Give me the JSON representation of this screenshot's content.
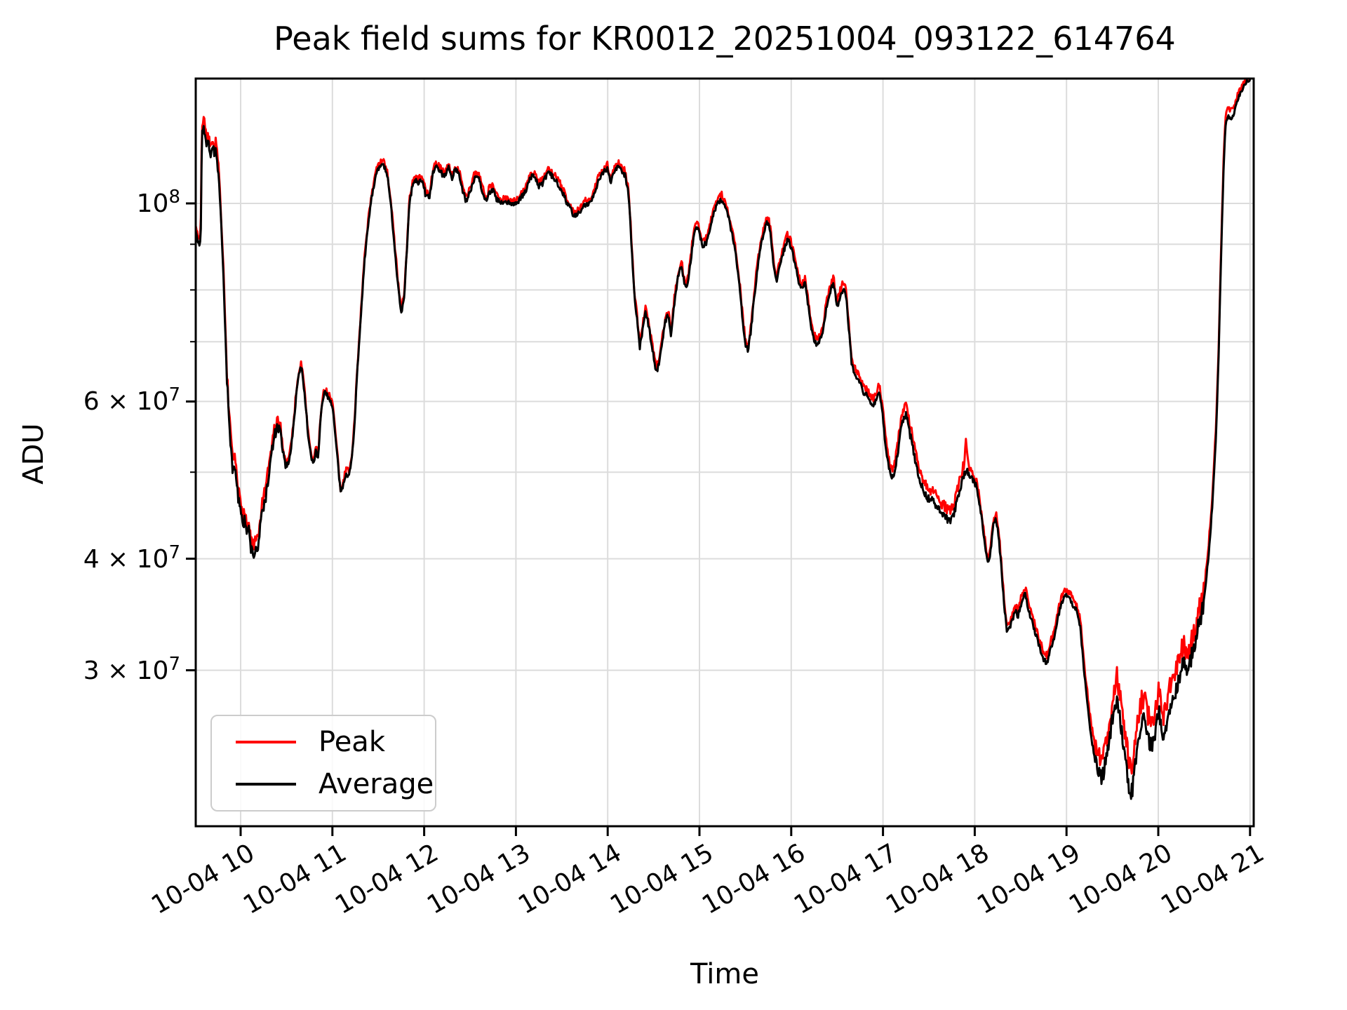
{
  "title": "Peak field sums for KR0012_20251004_093122_614764",
  "chart_data": {
    "type": "line",
    "title": "Peak field sums for KR0012_20251004_093122_614764",
    "xlabel": "Time",
    "ylabel": "ADU",
    "y_scale": "log",
    "grid": true,
    "legend_position": "lower left",
    "background_color": "#ffffff",
    "grid_color": "#dcdcdc",
    "spine_color": "#000000",
    "x_range_hours": [
      9.497,
      21.034
    ],
    "y_range_adu": [
      20000000,
      138000000
    ],
    "x_ticks": [
      {
        "label": "10-04 10",
        "hour": 10
      },
      {
        "label": "10-04 11",
        "hour": 11
      },
      {
        "label": "10-04 12",
        "hour": 12
      },
      {
        "label": "10-04 13",
        "hour": 13
      },
      {
        "label": "10-04 14",
        "hour": 14
      },
      {
        "label": "10-04 15",
        "hour": 15
      },
      {
        "label": "10-04 16",
        "hour": 16
      },
      {
        "label": "10-04 17",
        "hour": 17
      },
      {
        "label": "10-04 18",
        "hour": 18
      },
      {
        "label": "10-04 19",
        "hour": 19
      },
      {
        "label": "10-04 20",
        "hour": 20
      },
      {
        "label": "10-04 21",
        "hour": 21
      }
    ],
    "y_ticks": [
      {
        "value_e7": 10,
        "coef": "10",
        "exp": "8"
      },
      {
        "value_e7": 6,
        "coef": "6 × 10",
        "exp": "7"
      },
      {
        "value_e7": 4,
        "coef": "4 × 10",
        "exp": "7"
      },
      {
        "value_e7": 3,
        "coef": "3 × 10",
        "exp": "7"
      }
    ],
    "y_minor_ticks_e7": [
      9,
      8,
      7,
      5
    ],
    "series": [
      {
        "name": "Peak",
        "color": "#ff0000"
      },
      {
        "name": "Average",
        "color": "#000000"
      }
    ],
    "average_points_e7": [
      [
        9.515,
        9.3
      ],
      [
        9.53,
        9.1
      ],
      [
        9.55,
        9.0
      ],
      [
        9.565,
        9.15
      ],
      [
        9.578,
        12.15
      ],
      [
        9.6,
        12.2
      ],
      [
        9.615,
        11.85
      ],
      [
        9.63,
        11.5
      ],
      [
        9.645,
        11.9
      ],
      [
        9.66,
        11.55
      ],
      [
        9.675,
        11.25
      ],
      [
        9.695,
        11.7
      ],
      [
        9.71,
        11.35
      ],
      [
        9.725,
        11.55
      ],
      [
        9.74,
        11.2
      ],
      [
        9.755,
        10.9
      ],
      [
        9.77,
        10.3
      ],
      [
        9.79,
        9.4
      ],
      [
        9.81,
        8.4
      ],
      [
        9.83,
        7.3
      ],
      [
        9.85,
        6.4
      ],
      [
        9.87,
        5.8
      ],
      [
        9.885,
        5.45
      ],
      [
        9.9,
        5.25
      ],
      [
        9.915,
        5.0
      ],
      [
        9.93,
        5.15
      ],
      [
        9.945,
        4.95
      ],
      [
        9.96,
        4.8
      ],
      [
        9.975,
        4.65
      ],
      [
        9.99,
        4.62
      ],
      [
        10.01,
        4.5
      ],
      [
        10.03,
        4.38
      ],
      [
        10.05,
        4.42
      ],
      [
        10.07,
        4.25
      ],
      [
        10.09,
        4.32
      ],
      [
        10.11,
        4.12
      ],
      [
        10.13,
        4.06
      ],
      [
        10.15,
        4.03
      ],
      [
        10.17,
        4.14
      ],
      [
        10.19,
        4.08
      ],
      [
        10.21,
        4.3
      ],
      [
        10.23,
        4.5
      ],
      [
        10.25,
        4.58
      ],
      [
        10.28,
        4.72
      ],
      [
        10.31,
        4.98
      ],
      [
        10.34,
        5.28
      ],
      [
        10.37,
        5.5
      ],
      [
        10.4,
        5.6
      ],
      [
        10.43,
        5.55
      ],
      [
        10.46,
        5.28
      ],
      [
        10.49,
        5.08
      ],
      [
        10.52,
        5.12
      ],
      [
        10.55,
        5.32
      ],
      [
        10.58,
        5.68
      ],
      [
        10.61,
        6.18
      ],
      [
        10.64,
        6.48
      ],
      [
        10.66,
        6.55
      ],
      [
        10.68,
        6.38
      ],
      [
        10.71,
        5.92
      ],
      [
        10.74,
        5.42
      ],
      [
        10.77,
        5.18
      ],
      [
        10.8,
        5.12
      ],
      [
        10.82,
        5.3
      ],
      [
        10.845,
        5.18
      ],
      [
        10.87,
        5.72
      ],
      [
        10.9,
        6.08
      ],
      [
        10.93,
        6.15
      ],
      [
        10.96,
        6.05
      ],
      [
        11.0,
        5.95
      ],
      [
        11.03,
        5.52
      ],
      [
        11.06,
        5.12
      ],
      [
        11.09,
        4.72
      ],
      [
        11.12,
        4.85
      ],
      [
        11.15,
        5.0
      ],
      [
        11.18,
        4.95
      ],
      [
        11.21,
        5.15
      ],
      [
        11.24,
        5.65
      ],
      [
        11.27,
        6.45
      ],
      [
        11.31,
        7.5
      ],
      [
        11.35,
        8.6
      ],
      [
        11.4,
        9.7
      ],
      [
        11.44,
        10.35
      ],
      [
        11.48,
        10.8
      ],
      [
        11.52,
        11.0
      ],
      [
        11.56,
        11.05
      ],
      [
        11.6,
        10.7
      ],
      [
        11.64,
        9.9
      ],
      [
        11.68,
        8.9
      ],
      [
        11.72,
        8.0
      ],
      [
        11.75,
        7.55
      ],
      [
        11.78,
        7.8
      ],
      [
        11.81,
        8.8
      ],
      [
        11.84,
        10.0
      ],
      [
        11.87,
        10.45
      ],
      [
        11.9,
        10.6
      ],
      [
        11.94,
        10.55
      ],
      [
        11.98,
        10.65
      ],
      [
        12.02,
        10.15
      ],
      [
        12.06,
        10.2
      ],
      [
        12.1,
        10.85
      ],
      [
        12.14,
        11.0
      ],
      [
        12.18,
        10.85
      ],
      [
        12.22,
        10.7
      ],
      [
        12.26,
        11.0
      ],
      [
        12.3,
        10.65
      ],
      [
        12.34,
        10.95
      ],
      [
        12.38,
        10.8
      ],
      [
        12.42,
        10.3
      ],
      [
        12.46,
        10.05
      ],
      [
        12.5,
        10.3
      ],
      [
        12.55,
        10.7
      ],
      [
        12.59,
        10.75
      ],
      [
        12.63,
        10.35
      ],
      [
        12.67,
        10.05
      ],
      [
        12.71,
        10.3
      ],
      [
        12.75,
        10.35
      ],
      [
        12.79,
        10.1
      ],
      [
        12.84,
        10.0
      ],
      [
        12.89,
        10.02
      ],
      [
        12.95,
        10.0
      ],
      [
        13.01,
        10.0
      ],
      [
        13.06,
        10.15
      ],
      [
        13.11,
        10.35
      ],
      [
        13.16,
        10.7
      ],
      [
        13.2,
        10.75
      ],
      [
        13.25,
        10.45
      ],
      [
        13.3,
        10.55
      ],
      [
        13.35,
        10.85
      ],
      [
        13.4,
        10.7
      ],
      [
        13.45,
        10.55
      ],
      [
        13.5,
        10.35
      ],
      [
        13.55,
        10.05
      ],
      [
        13.6,
        9.85
      ],
      [
        13.63,
        9.65
      ],
      [
        13.67,
        9.72
      ],
      [
        13.71,
        9.8
      ],
      [
        13.75,
        9.95
      ],
      [
        13.8,
        10.0
      ],
      [
        13.85,
        10.25
      ],
      [
        13.9,
        10.6
      ],
      [
        13.95,
        10.85
      ],
      [
        14.0,
        10.95
      ],
      [
        14.03,
        10.55
      ],
      [
        14.07,
        10.85
      ],
      [
        14.11,
        11.0
      ],
      [
        14.15,
        10.9
      ],
      [
        14.19,
        10.75
      ],
      [
        14.23,
        10.2
      ],
      [
        14.26,
        9.0
      ],
      [
        14.29,
        7.9
      ],
      [
        14.32,
        7.4
      ],
      [
        14.35,
        6.9
      ],
      [
        14.38,
        7.2
      ],
      [
        14.41,
        7.55
      ],
      [
        14.44,
        7.35
      ],
      [
        14.47,
        7.05
      ],
      [
        14.5,
        6.75
      ],
      [
        14.53,
        6.45
      ],
      [
        14.56,
        6.65
      ],
      [
        14.6,
        7.05
      ],
      [
        14.63,
        7.4
      ],
      [
        14.66,
        7.5
      ],
      [
        14.69,
        7.1
      ],
      [
        14.73,
        7.8
      ],
      [
        14.77,
        8.3
      ],
      [
        14.8,
        8.55
      ],
      [
        14.83,
        8.2
      ],
      [
        14.86,
        8.0
      ],
      [
        14.89,
        8.4
      ],
      [
        14.92,
        8.9
      ],
      [
        14.95,
        9.35
      ],
      [
        14.98,
        9.45
      ],
      [
        15.01,
        9.15
      ],
      [
        15.04,
        8.95
      ],
      [
        15.08,
        9.05
      ],
      [
        15.12,
        9.4
      ],
      [
        15.16,
        9.8
      ],
      [
        15.2,
        10.0
      ],
      [
        15.24,
        10.1
      ],
      [
        15.28,
        9.95
      ],
      [
        15.32,
        9.6
      ],
      [
        15.36,
        9.2
      ],
      [
        15.4,
        8.7
      ],
      [
        15.44,
        8.0
      ],
      [
        15.47,
        7.4
      ],
      [
        15.5,
        6.95
      ],
      [
        15.53,
        6.85
      ],
      [
        15.56,
        7.2
      ],
      [
        15.6,
        7.9
      ],
      [
        15.64,
        8.6
      ],
      [
        15.68,
        9.1
      ],
      [
        15.72,
        9.45
      ],
      [
        15.75,
        9.55
      ],
      [
        15.78,
        9.15
      ],
      [
        15.81,
        8.5
      ],
      [
        15.84,
        8.2
      ],
      [
        15.88,
        8.55
      ],
      [
        15.92,
        8.85
      ],
      [
        15.96,
        9.1
      ],
      [
        16.0,
        8.95
      ],
      [
        16.04,
        8.55
      ],
      [
        16.08,
        8.2
      ],
      [
        16.12,
        8.0
      ],
      [
        16.15,
        8.15
      ],
      [
        16.18,
        7.75
      ],
      [
        16.21,
        7.35
      ],
      [
        16.24,
        7.1
      ],
      [
        16.27,
        6.95
      ],
      [
        16.31,
        7.0
      ],
      [
        16.35,
        7.25
      ],
      [
        16.39,
        7.7
      ],
      [
        16.43,
        8.0
      ],
      [
        16.46,
        8.15
      ],
      [
        16.5,
        7.65
      ],
      [
        16.53,
        7.85
      ],
      [
        16.57,
        8.05
      ],
      [
        16.6,
        7.85
      ],
      [
        16.63,
        7.2
      ],
      [
        16.66,
        6.6
      ],
      [
        16.7,
        6.42
      ],
      [
        16.74,
        6.35
      ],
      [
        16.78,
        6.15
      ],
      [
        16.82,
        6.1
      ],
      [
        16.86,
        6.0
      ],
      [
        16.9,
        5.95
      ],
      [
        16.93,
        6.05
      ],
      [
        16.96,
        6.15
      ],
      [
        16.99,
        5.88
      ],
      [
        17.02,
        5.45
      ],
      [
        17.05,
        5.15
      ],
      [
        17.08,
        4.98
      ],
      [
        17.11,
        4.92
      ],
      [
        17.14,
        5.08
      ],
      [
        17.17,
        5.35
      ],
      [
        17.2,
        5.6
      ],
      [
        17.23,
        5.75
      ],
      [
        17.26,
        5.8
      ],
      [
        17.29,
        5.55
      ],
      [
        17.32,
        5.35
      ],
      [
        17.36,
        5.1
      ],
      [
        17.4,
        4.9
      ],
      [
        17.44,
        4.78
      ],
      [
        17.48,
        4.68
      ],
      [
        17.52,
        4.66
      ],
      [
        17.56,
        4.62
      ],
      [
        17.6,
        4.56
      ],
      [
        17.64,
        4.5
      ],
      [
        17.68,
        4.46
      ],
      [
        17.72,
        4.4
      ],
      [
        17.76,
        4.45
      ],
      [
        17.8,
        4.6
      ],
      [
        17.84,
        4.8
      ],
      [
        17.88,
        4.95
      ],
      [
        17.91,
        5.05
      ],
      [
        17.94,
        4.95
      ],
      [
        17.98,
        4.9
      ],
      [
        18.02,
        4.82
      ],
      [
        18.06,
        4.55
      ],
      [
        18.1,
        4.25
      ],
      [
        18.14,
        3.95
      ],
      [
        18.17,
        4.05
      ],
      [
        18.2,
        4.35
      ],
      [
        18.23,
        4.45
      ],
      [
        18.26,
        4.25
      ],
      [
        18.29,
        3.9
      ],
      [
        18.32,
        3.55
      ],
      [
        18.35,
        3.32
      ],
      [
        18.38,
        3.35
      ],
      [
        18.41,
        3.42
      ],
      [
        18.44,
        3.5
      ],
      [
        18.47,
        3.45
      ],
      [
        18.51,
        3.58
      ],
      [
        18.55,
        3.65
      ],
      [
        18.59,
        3.5
      ],
      [
        18.63,
        3.38
      ],
      [
        18.67,
        3.28
      ],
      [
        18.71,
        3.18
      ],
      [
        18.75,
        3.08
      ],
      [
        18.79,
        3.06
      ],
      [
        18.83,
        3.18
      ],
      [
        18.87,
        3.28
      ],
      [
        18.91,
        3.45
      ],
      [
        18.95,
        3.58
      ],
      [
        18.99,
        3.65
      ],
      [
        19.03,
        3.62
      ],
      [
        19.07,
        3.55
      ],
      [
        19.11,
        3.5
      ],
      [
        19.15,
        3.35
      ],
      [
        19.19,
        3.0
      ],
      [
        19.23,
        2.75
      ],
      [
        19.27,
        2.52
      ],
      [
        19.31,
        2.38
      ],
      [
        19.35,
        2.3
      ],
      [
        19.39,
        2.28
      ],
      [
        19.43,
        2.38
      ],
      [
        19.47,
        2.52
      ],
      [
        19.51,
        2.68
      ],
      [
        19.55,
        2.8
      ],
      [
        19.59,
        2.62
      ],
      [
        19.63,
        2.42
      ],
      [
        19.67,
        2.27
      ],
      [
        19.7,
        2.16
      ],
      [
        19.73,
        2.25
      ],
      [
        19.77,
        2.45
      ],
      [
        19.81,
        2.58
      ],
      [
        19.85,
        2.65
      ],
      [
        19.89,
        2.52
      ],
      [
        19.93,
        2.45
      ],
      [
        19.97,
        2.58
      ],
      [
        20.01,
        2.7
      ],
      [
        20.05,
        2.52
      ],
      [
        20.09,
        2.58
      ],
      [
        20.13,
        2.72
      ],
      [
        20.17,
        2.8
      ],
      [
        20.21,
        2.88
      ],
      [
        20.25,
        3.02
      ],
      [
        20.29,
        3.06
      ],
      [
        20.32,
        2.96
      ],
      [
        20.36,
        3.1
      ],
      [
        20.4,
        3.22
      ],
      [
        20.44,
        3.38
      ],
      [
        20.48,
        3.5
      ],
      [
        20.51,
        3.68
      ],
      [
        20.54,
        3.95
      ],
      [
        20.57,
        4.3
      ],
      [
        20.6,
        4.8
      ],
      [
        20.63,
        5.5
      ],
      [
        20.655,
        6.6
      ],
      [
        20.675,
        8.0
      ],
      [
        20.695,
        9.6
      ],
      [
        20.715,
        11.2
      ],
      [
        20.735,
        12.3
      ],
      [
        20.76,
        12.5
      ],
      [
        20.79,
        12.45
      ],
      [
        20.82,
        12.55
      ],
      [
        20.85,
        12.9
      ],
      [
        20.88,
        13.2
      ],
      [
        20.91,
        13.4
      ],
      [
        20.94,
        13.55
      ],
      [
        20.97,
        13.7
      ],
      [
        21.0,
        13.78
      ],
      [
        21.02,
        13.82
      ]
    ],
    "peak_spread_pct": [
      [
        9.5,
        1.5
      ],
      [
        9.75,
        1.8
      ],
      [
        9.9,
        2.0
      ],
      [
        10.3,
        2.0
      ],
      [
        10.5,
        1.0
      ],
      [
        10.7,
        0.8
      ],
      [
        14.2,
        1.0
      ],
      [
        16.9,
        1.5
      ],
      [
        17.1,
        2.5
      ],
      [
        17.5,
        2.5
      ],
      [
        17.8,
        2.5
      ],
      [
        17.88,
        3.0
      ],
      [
        17.905,
        8.0
      ],
      [
        17.93,
        2.0
      ],
      [
        18.1,
        1.2
      ],
      [
        18.7,
        1.8
      ],
      [
        19.1,
        1.5
      ],
      [
        19.35,
        4.0
      ],
      [
        19.6,
        6.0
      ],
      [
        19.75,
        7.0
      ],
      [
        19.9,
        6.0
      ],
      [
        20.05,
        6.0
      ],
      [
        20.2,
        5.5
      ],
      [
        20.35,
        4.0
      ],
      [
        20.5,
        3.0
      ],
      [
        20.65,
        2.5
      ],
      [
        20.78,
        2.2
      ],
      [
        20.88,
        1.2
      ],
      [
        21.02,
        0.8
      ]
    ],
    "noise": {
      "base_amp": 0.007,
      "regions": [
        {
          "from": 9.57,
          "to": 9.76,
          "amp": 0.012
        },
        {
          "from": 9.85,
          "to": 10.45,
          "amp": 0.015
        },
        {
          "from": 17.1,
          "to": 17.9,
          "amp": 0.01
        },
        {
          "from": 19.3,
          "to": 20.5,
          "amp": 0.022
        },
        {
          "from": 20.62,
          "to": 21.03,
          "amp": 0.005
        }
      ],
      "peak_amp_factor": 1.35
    }
  },
  "legend": {
    "peak_label": "Peak",
    "average_label": "Average"
  }
}
